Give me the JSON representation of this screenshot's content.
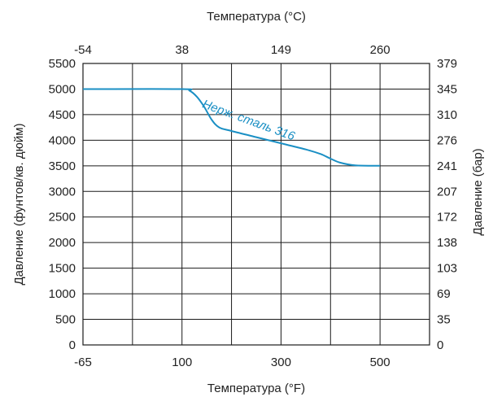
{
  "chart_data": {
    "type": "line",
    "title": "",
    "xlabel": "Температура (°F)",
    "ylabel": "Давление (фунтов/кв. дюйм)",
    "x2label": "Температура (°C)",
    "y2label": "Давление (бар)",
    "xlim": [
      -65,
      600
    ],
    "ylim": [
      0,
      5500
    ],
    "grid": true,
    "x_ticks": [
      {
        "value": -65,
        "label": "-65"
      },
      {
        "value": 35,
        "label": ""
      },
      {
        "value": 100,
        "label": "100"
      },
      {
        "value": 200,
        "label": ""
      },
      {
        "value": 300,
        "label": "300"
      },
      {
        "value": 400,
        "label": ""
      },
      {
        "value": 500,
        "label": "500"
      }
    ],
    "x2_ticks": [
      {
        "value": -65,
        "label": "-54"
      },
      {
        "value": 100,
        "label": "38"
      },
      {
        "value": 300,
        "label": "149"
      },
      {
        "value": 500,
        "label": "260"
      }
    ],
    "y_ticks": [
      {
        "value": 0,
        "label": "0"
      },
      {
        "value": 500,
        "label": "500"
      },
      {
        "value": 1000,
        "label": "1000"
      },
      {
        "value": 1500,
        "label": "1500"
      },
      {
        "value": 2000,
        "label": "2000"
      },
      {
        "value": 2500,
        "label": "2500"
      },
      {
        "value": 3000,
        "label": "3000"
      },
      {
        "value": 3500,
        "label": "3500"
      },
      {
        "value": 4000,
        "label": "4000"
      },
      {
        "value": 4500,
        "label": "4500"
      },
      {
        "value": 5000,
        "label": "5000"
      },
      {
        "value": 5500,
        "label": "5500"
      }
    ],
    "y2_ticks": [
      {
        "value": 0,
        "label": "0"
      },
      {
        "value": 500,
        "label": "35"
      },
      {
        "value": 1000,
        "label": "69"
      },
      {
        "value": 1500,
        "label": "103"
      },
      {
        "value": 2000,
        "label": "138"
      },
      {
        "value": 2500,
        "label": "172"
      },
      {
        "value": 3000,
        "label": "207"
      },
      {
        "value": 3500,
        "label": "241"
      },
      {
        "value": 4000,
        "label": "276"
      },
      {
        "value": 4500,
        "label": "310"
      },
      {
        "value": 5000,
        "label": "345"
      },
      {
        "value": 5500,
        "label": "379"
      }
    ],
    "series": [
      {
        "name": "Нерж. сталь 316",
        "color": "#1a8fc4",
        "x": [
          -65,
          100,
          115,
          130,
          145,
          160,
          175,
          200,
          250,
          300,
          350,
          380,
          400,
          420,
          450,
          500
        ],
        "y": [
          5000,
          5000,
          4970,
          4850,
          4650,
          4400,
          4250,
          4180,
          4060,
          3940,
          3820,
          3730,
          3640,
          3560,
          3510,
          3500
        ]
      }
    ]
  }
}
